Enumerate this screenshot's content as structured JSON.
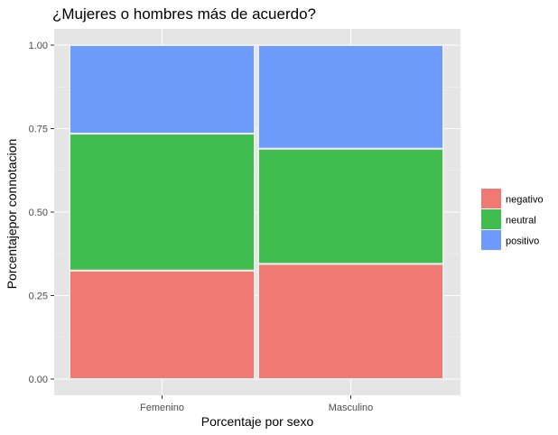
{
  "chart_data": {
    "type": "bar",
    "title": "¿Mujeres o hombres más de acuerdo?",
    "xlabel": "Porcentaje por sexo",
    "ylabel": "Porcentajepor connotacion",
    "ylim": [
      0,
      1
    ],
    "y_ticks": [
      "0.00",
      "0.25",
      "0.50",
      "0.75",
      "1.00"
    ],
    "y_tick_values": [
      0,
      0.25,
      0.5,
      0.75,
      1
    ],
    "grid": true,
    "stacked": true,
    "mosaic": true,
    "legend_position": "right",
    "categories": [
      "Femenino",
      "Masculino"
    ],
    "category_width_fraction": [
      0.5,
      0.5
    ],
    "series": [
      {
        "name": "negativo",
        "values": [
          0.325,
          0.345
        ],
        "color": "#F07974"
      },
      {
        "name": "neutral",
        "values": [
          0.41,
          0.345
        ],
        "color": "#41BC4F"
      },
      {
        "name": "positivo",
        "values": [
          0.265,
          0.31
        ],
        "color": "#6D9BFB"
      }
    ]
  },
  "colors": {
    "panel_background": "#E5E5E5",
    "grid_major": "#FFFFFF",
    "tick_text": "#4D4D4D"
  }
}
